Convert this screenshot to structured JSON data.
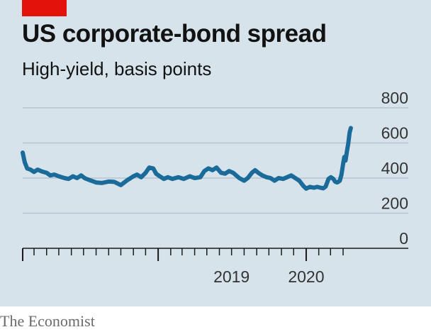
{
  "header": {
    "title": "US corporate-bond spread",
    "subtitle": "High-yield, basis points"
  },
  "footer": {
    "source": "The Economist"
  },
  "colors": {
    "line": "#1a6a9a",
    "grid": "#b5c4ce",
    "accent": "#e3120b",
    "background": "#d7e3eb"
  },
  "chart_data": {
    "type": "line",
    "title": "US corporate-bond spread",
    "subtitle": "High-yield, basis points",
    "xlabel": "",
    "ylabel": "",
    "ylim": [
      0,
      800
    ],
    "yticks": [
      0,
      200,
      400,
      600,
      800
    ],
    "y_axis_side": "right",
    "grid": true,
    "xlim": [
      "2018-02-01",
      "2020-03-25"
    ],
    "x_tick_labels": [
      {
        "label": "2019",
        "date": "2019-01-01"
      },
      {
        "label": "2020",
        "date": "2020-01-01"
      }
    ],
    "series": [
      {
        "name": "",
        "points": [
          [
            "2018-02-01",
            545
          ],
          [
            "2018-02-06",
            490
          ],
          [
            "2018-02-12",
            455
          ],
          [
            "2018-02-20",
            448
          ],
          [
            "2018-03-01",
            435
          ],
          [
            "2018-03-10",
            448
          ],
          [
            "2018-03-20",
            438
          ],
          [
            "2018-04-01",
            430
          ],
          [
            "2018-04-10",
            415
          ],
          [
            "2018-04-20",
            420
          ],
          [
            "2018-05-01",
            410
          ],
          [
            "2018-05-15",
            400
          ],
          [
            "2018-05-25",
            395
          ],
          [
            "2018-06-05",
            410
          ],
          [
            "2018-06-15",
            400
          ],
          [
            "2018-06-25",
            415
          ],
          [
            "2018-07-05",
            398
          ],
          [
            "2018-07-20",
            385
          ],
          [
            "2018-08-01",
            375
          ],
          [
            "2018-08-15",
            372
          ],
          [
            "2018-09-01",
            380
          ],
          [
            "2018-09-15",
            378
          ],
          [
            "2018-10-01",
            360
          ],
          [
            "2018-10-15",
            385
          ],
          [
            "2018-11-01",
            410
          ],
          [
            "2018-11-10",
            420
          ],
          [
            "2018-11-20",
            405
          ],
          [
            "2018-12-01",
            430
          ],
          [
            "2018-12-10",
            460
          ],
          [
            "2018-12-20",
            455
          ],
          [
            "2018-12-27",
            425
          ],
          [
            "2019-01-05",
            410
          ],
          [
            "2019-01-15",
            395
          ],
          [
            "2019-01-25",
            405
          ],
          [
            "2019-02-05",
            395
          ],
          [
            "2019-02-20",
            405
          ],
          [
            "2019-03-05",
            395
          ],
          [
            "2019-03-20",
            410
          ],
          [
            "2019-04-01",
            400
          ],
          [
            "2019-04-15",
            405
          ],
          [
            "2019-04-25",
            440
          ],
          [
            "2019-05-05",
            455
          ],
          [
            "2019-05-15",
            445
          ],
          [
            "2019-05-25",
            460
          ],
          [
            "2019-06-05",
            430
          ],
          [
            "2019-06-15",
            425
          ],
          [
            "2019-06-25",
            440
          ],
          [
            "2019-07-05",
            430
          ],
          [
            "2019-07-20",
            400
          ],
          [
            "2019-08-01",
            385
          ],
          [
            "2019-08-10",
            400
          ],
          [
            "2019-08-20",
            430
          ],
          [
            "2019-08-28",
            445
          ],
          [
            "2019-09-05",
            430
          ],
          [
            "2019-09-15",
            415
          ],
          [
            "2019-09-25",
            405
          ],
          [
            "2019-10-05",
            400
          ],
          [
            "2019-10-15",
            385
          ],
          [
            "2019-10-25",
            400
          ],
          [
            "2019-11-05",
            395
          ],
          [
            "2019-11-15",
            405
          ],
          [
            "2019-11-25",
            415
          ],
          [
            "2019-12-05",
            400
          ],
          [
            "2019-12-15",
            385
          ],
          [
            "2019-12-25",
            355
          ],
          [
            "2020-01-01",
            340
          ],
          [
            "2020-01-10",
            350
          ],
          [
            "2020-01-20",
            345
          ],
          [
            "2020-01-28",
            350
          ],
          [
            "2020-02-05",
            345
          ],
          [
            "2020-02-12",
            342
          ],
          [
            "2020-02-18",
            352
          ],
          [
            "2020-02-25",
            395
          ],
          [
            "2020-03-02",
            405
          ],
          [
            "2020-03-08",
            395
          ],
          [
            "2020-03-12",
            380
          ],
          [
            "2020-03-17",
            375
          ],
          [
            "2020-03-20",
            378
          ],
          [
            "2020-03-24",
            385
          ],
          [
            "2020-03-28",
            420
          ],
          [
            "2020-04-01",
            480
          ],
          [
            "2020-04-04",
            520
          ],
          [
            "2020-04-07",
            500
          ],
          [
            "2020-04-11",
            560
          ],
          [
            "2020-04-14",
            600
          ],
          [
            "2020-04-17",
            660
          ],
          [
            "2020-04-20",
            685
          ]
        ]
      }
    ]
  }
}
